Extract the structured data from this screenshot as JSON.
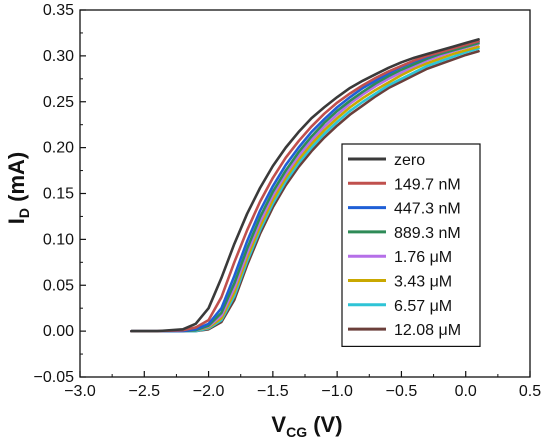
{
  "chart_data": {
    "type": "line",
    "title": "",
    "xlabel": "V",
    "xlabel_sub": "CG",
    "xlabel_unit": " (V)",
    "ylabel": "I",
    "ylabel_sub": "D",
    "ylabel_unit": " (mA)",
    "xlim": [
      -3.0,
      0.5
    ],
    "ylim": [
      -0.05,
      0.35
    ],
    "xticks": [
      -3.0,
      -2.5,
      -2.0,
      -1.5,
      -1.0,
      -0.5,
      0.0,
      0.5
    ],
    "xtick_labels": [
      "−3.0",
      "−2.5",
      "−2.0",
      "−1.5",
      "−1.0",
      "−0.5",
      "0.0",
      "0.5"
    ],
    "yticks": [
      -0.05,
      0.0,
      0.05,
      0.1,
      0.15,
      0.2,
      0.25,
      0.3,
      0.35
    ],
    "ytick_labels": [
      "−0.05",
      "0.00",
      "0.05",
      "0.10",
      "0.15",
      "0.20",
      "0.25",
      "0.30",
      "0.35"
    ],
    "grid": false,
    "legend_position": "right-center",
    "x": [
      -2.6,
      -2.4,
      -2.2,
      -2.1,
      -2.0,
      -1.9,
      -1.8,
      -1.7,
      -1.6,
      -1.5,
      -1.4,
      -1.3,
      -1.2,
      -1.1,
      -1.0,
      -0.9,
      -0.8,
      -0.7,
      -0.6,
      -0.5,
      -0.4,
      -0.3,
      -0.2,
      -0.1,
      0.0,
      0.1
    ],
    "series": [
      {
        "name": "zero",
        "color": "#3a3a3a",
        "values": [
          0.0,
          0.0,
          0.002,
          0.008,
          0.025,
          0.058,
          0.095,
          0.128,
          0.156,
          0.18,
          0.2,
          0.217,
          0.232,
          0.244,
          0.255,
          0.265,
          0.273,
          0.28,
          0.287,
          0.293,
          0.298,
          0.302,
          0.306,
          0.31,
          0.314,
          0.318
        ]
      },
      {
        "name": "149.7 nM",
        "color": "#c0504d",
        "values": [
          0.0,
          0.0,
          0.001,
          0.004,
          0.012,
          0.037,
          0.075,
          0.11,
          0.141,
          0.167,
          0.189,
          0.207,
          0.223,
          0.237,
          0.249,
          0.259,
          0.268,
          0.276,
          0.283,
          0.289,
          0.295,
          0.3,
          0.304,
          0.308,
          0.312,
          0.316
        ]
      },
      {
        "name": "447.3 nM",
        "color": "#1f5fd6",
        "values": [
          0.0,
          0.0,
          0.0,
          0.002,
          0.008,
          0.025,
          0.06,
          0.098,
          0.131,
          0.158,
          0.181,
          0.2,
          0.217,
          0.231,
          0.244,
          0.255,
          0.265,
          0.273,
          0.281,
          0.288,
          0.294,
          0.299,
          0.304,
          0.308,
          0.312,
          0.316
        ]
      },
      {
        "name": "889.3 nM",
        "color": "#2e8b57",
        "values": [
          0.0,
          0.0,
          0.0,
          0.001,
          0.006,
          0.02,
          0.052,
          0.09,
          0.124,
          0.152,
          0.175,
          0.195,
          0.212,
          0.227,
          0.24,
          0.251,
          0.261,
          0.27,
          0.278,
          0.285,
          0.291,
          0.297,
          0.302,
          0.306,
          0.31,
          0.314
        ]
      },
      {
        "name": "1.76 μM",
        "color": "#b56fe8",
        "values": [
          0.0,
          0.0,
          0.0,
          0.001,
          0.005,
          0.017,
          0.047,
          0.085,
          0.119,
          0.148,
          0.171,
          0.191,
          0.208,
          0.223,
          0.236,
          0.248,
          0.258,
          0.267,
          0.275,
          0.282,
          0.289,
          0.295,
          0.3,
          0.305,
          0.309,
          0.313
        ]
      },
      {
        "name": "3.43 μM",
        "color": "#c9a800",
        "values": [
          0.0,
          0.0,
          0.0,
          0.001,
          0.004,
          0.014,
          0.042,
          0.08,
          0.114,
          0.143,
          0.167,
          0.187,
          0.204,
          0.219,
          0.232,
          0.244,
          0.254,
          0.263,
          0.271,
          0.279,
          0.286,
          0.292,
          0.297,
          0.302,
          0.306,
          0.31
        ]
      },
      {
        "name": "6.57 μM",
        "color": "#2ec4d6",
        "values": [
          0.0,
          0.0,
          0.0,
          0.0,
          0.003,
          0.012,
          0.038,
          0.076,
          0.11,
          0.139,
          0.163,
          0.183,
          0.2,
          0.215,
          0.228,
          0.24,
          0.25,
          0.259,
          0.268,
          0.275,
          0.282,
          0.289,
          0.294,
          0.299,
          0.304,
          0.308
        ]
      },
      {
        "name": "12.08 μM",
        "color": "#6b3f3a",
        "values": [
          0.0,
          0.0,
          0.0,
          0.0,
          0.002,
          0.01,
          0.034,
          0.072,
          0.106,
          0.135,
          0.159,
          0.179,
          0.196,
          0.211,
          0.224,
          0.236,
          0.246,
          0.256,
          0.265,
          0.272,
          0.279,
          0.286,
          0.291,
          0.296,
          0.301,
          0.305
        ]
      }
    ]
  }
}
